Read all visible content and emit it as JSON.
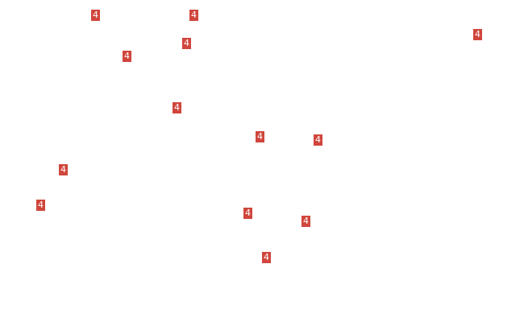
{
  "badge_color": "#d0463c",
  "markers": [
    {
      "label": "4"
    },
    {
      "label": "4"
    },
    {
      "label": "4"
    },
    {
      "label": "4"
    },
    {
      "label": "4"
    },
    {
      "label": "4"
    },
    {
      "label": "4"
    },
    {
      "label": "4"
    },
    {
      "label": "4"
    },
    {
      "label": "4"
    },
    {
      "label": "4"
    },
    {
      "label": "4"
    },
    {
      "label": "4"
    }
  ]
}
